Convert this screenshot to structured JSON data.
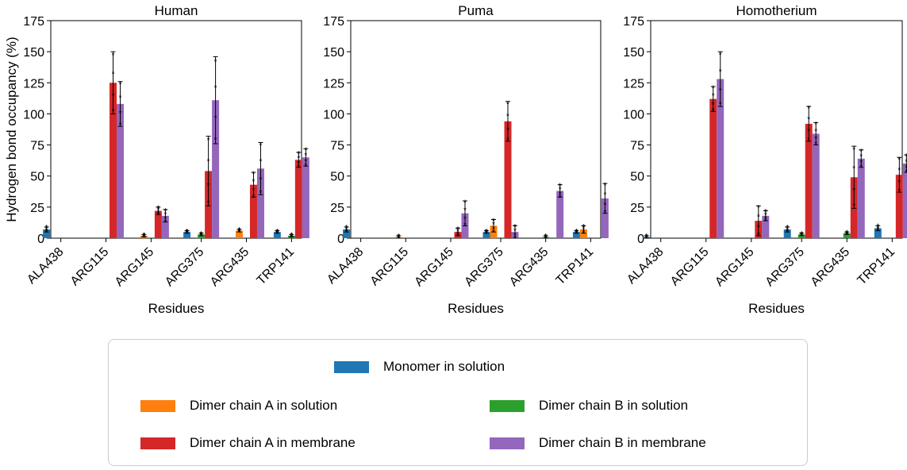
{
  "chart_data": [
    {
      "type": "bar",
      "title": "Human",
      "ylabel": "Hydrogen bond occupancy (%)",
      "xlabel": "Residues",
      "ylim": [
        0,
        175
      ],
      "yticks": [
        "0",
        "25",
        "50",
        "75",
        "100",
        "125",
        "150",
        "175"
      ],
      "categories": [
        "ALA438",
        "ARG115",
        "ARG145",
        "ARG375",
        "ARG435",
        "TRP141"
      ],
      "series": [
        {
          "name": "Monomer in solution",
          "values": [
            7,
            0,
            0,
            5,
            0,
            5
          ],
          "errors": [
            2,
            0,
            0,
            1,
            0,
            1
          ]
        },
        {
          "name": "Dimer chain A in solution",
          "values": [
            0,
            0,
            2,
            0,
            6,
            0
          ],
          "errors": [
            0,
            0,
            1,
            0,
            1,
            0
          ]
        },
        {
          "name": "Dimer chain B in solution",
          "values": [
            0,
            0,
            0,
            3,
            0,
            2
          ],
          "errors": [
            0,
            0,
            0,
            1,
            0,
            1
          ]
        },
        {
          "name": "Dimer chain A in membrane",
          "values": [
            0,
            125,
            22,
            54,
            43,
            63
          ],
          "errors": [
            0,
            25,
            3,
            28,
            10,
            6
          ]
        },
        {
          "name": "Dimer chain B in membrane",
          "values": [
            0,
            108,
            18,
            111,
            56,
            65
          ],
          "errors": [
            0,
            18,
            5,
            35,
            21,
            7
          ]
        }
      ]
    },
    {
      "type": "bar",
      "title": "Puma",
      "xlabel": "Residues",
      "ylim": [
        0,
        175
      ],
      "yticks": [
        "0",
        "25",
        "50",
        "75",
        "100",
        "125",
        "150",
        "175"
      ],
      "categories": [
        "ALA438",
        "ARG115",
        "ARG145",
        "ARG375",
        "ARG435",
        "TRP141"
      ],
      "series": [
        {
          "name": "Monomer in solution",
          "values": [
            7,
            0,
            0,
            5,
            0,
            5
          ],
          "errors": [
            2,
            0,
            0,
            1,
            0,
            1
          ]
        },
        {
          "name": "Dimer chain A in solution",
          "values": [
            0,
            1,
            0,
            10,
            0,
            7
          ],
          "errors": [
            0,
            1,
            0,
            5,
            0,
            3
          ]
        },
        {
          "name": "Dimer chain B in solution",
          "values": [
            0,
            0,
            0,
            0,
            1,
            0
          ],
          "errors": [
            0,
            0,
            0,
            0,
            1,
            0
          ]
        },
        {
          "name": "Dimer chain A in membrane",
          "values": [
            0,
            0,
            5,
            94,
            0,
            0
          ],
          "errors": [
            0,
            0,
            3,
            16,
            0,
            0
          ]
        },
        {
          "name": "Dimer chain B in membrane",
          "values": [
            0,
            0,
            20,
            5,
            38,
            32
          ],
          "errors": [
            0,
            0,
            10,
            5,
            5,
            12
          ]
        }
      ]
    },
    {
      "type": "bar",
      "title": "Homotherium",
      "xlabel": "Residues",
      "ylim": [
        0,
        175
      ],
      "yticks": [
        "0",
        "25",
        "50",
        "75",
        "100",
        "125",
        "150",
        "175"
      ],
      "categories": [
        "ALA438",
        "ARG115",
        "ARG145",
        "ARG375",
        "ARG435",
        "TRP141"
      ],
      "series": [
        {
          "name": "Monomer in solution",
          "values": [
            1,
            0,
            0,
            7,
            0,
            8
          ],
          "errors": [
            1,
            0,
            0,
            2,
            0,
            2
          ]
        },
        {
          "name": "Dimer chain A in solution",
          "values": [
            0,
            0,
            0,
            0,
            0,
            0
          ],
          "errors": [
            0,
            0,
            0,
            0,
            0,
            0
          ]
        },
        {
          "name": "Dimer chain B in solution",
          "values": [
            0,
            0,
            0,
            3,
            4,
            0
          ],
          "errors": [
            0,
            0,
            0,
            1,
            1,
            0
          ]
        },
        {
          "name": "Dimer chain A in membrane",
          "values": [
            0,
            112,
            14,
            92,
            49,
            51
          ],
          "errors": [
            0,
            10,
            12,
            14,
            25,
            14
          ]
        },
        {
          "name": "Dimer chain B in membrane",
          "values": [
            0,
            128,
            18,
            84,
            64,
            60
          ],
          "errors": [
            0,
            22,
            4,
            9,
            7,
            7
          ]
        }
      ]
    }
  ],
  "colors": {
    "Monomer in solution": "#1f77b4",
    "Dimer chain A in solution": "#ff7f0e",
    "Dimer chain B in solution": "#2ca02c",
    "Dimer chain A in membrane": "#d62728",
    "Dimer chain B in membrane": "#9467bd"
  },
  "legend": {
    "placement": "bottom",
    "items": [
      {
        "label": "Monomer in solution",
        "color": "#1f77b4"
      },
      {
        "label": "Dimer chain A in solution",
        "color": "#ff7f0e"
      },
      {
        "label": "Dimer chain B in solution",
        "color": "#2ca02c"
      },
      {
        "label": "Dimer chain A in membrane",
        "color": "#d62728"
      },
      {
        "label": "Dimer chain B in membrane",
        "color": "#9467bd"
      }
    ]
  },
  "grid": false
}
